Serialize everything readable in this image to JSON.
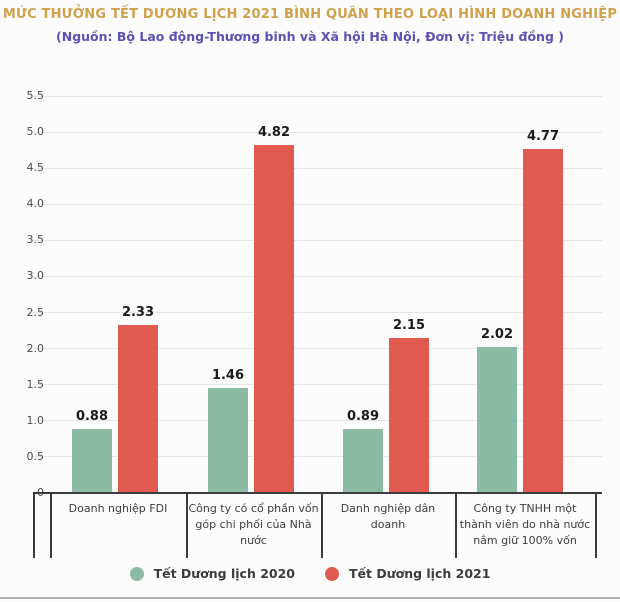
{
  "header": {
    "title": "MỨC THƯỞNG TẾT DƯƠNG LỊCH 2021 BÌNH QUÂN THEO LOẠI HÌNH DOANH NGHIỆP",
    "subtitle": "(Nguồn: Bộ Lao động-Thương binh và Xã hội Hà Nội, Đơn vị: Triệu đồng )"
  },
  "colors": {
    "title_text": "#cfa14b",
    "subtitle_text": "#5c52b4",
    "series_2020": "#8cbba5",
    "series_2021": "#e15a4f",
    "gridline": "#e6e6e6",
    "axis": "#3b3b3b",
    "tick_text": "#4c4c4c",
    "category_text": "#3d3d3d",
    "background": "#fcfcfc"
  },
  "chart_data": {
    "type": "bar",
    "title": "MỨC THƯỞNG TẾT DƯƠNG LỊCH 2021 BÌNH QUÂN THEO LOẠI HÌNH DOANH NGHIỆP",
    "subtitle": "(Nguồn: Bộ Lao động-Thương binh và Xã hội Hà Nội, Đơn vị: Triệu đồng )",
    "unit_label": "Triệu đồng",
    "categories": [
      "Doanh nghiệp FDI",
      "Công ty có cổ phần vốn góp chi phối của Nhà nước",
      "Danh nghiệp dân doanh",
      "Công ty TNHH một thành viên do nhà nước nắm giữ 100% vốn"
    ],
    "series": [
      {
        "name": "Tết Dương lịch 2020",
        "color": "#8cbba5",
        "values": [
          0.88,
          1.46,
          0.89,
          2.02
        ]
      },
      {
        "name": "Tết Dương lịch 2021",
        "color": "#e15a4f",
        "values": [
          2.33,
          4.82,
          2.15,
          4.77
        ]
      }
    ],
    "data_labels": [
      [
        "0.88",
        "1.46",
        "0.89",
        "2.02"
      ],
      [
        "2.33",
        "4.82",
        "2.15",
        "4.77"
      ]
    ],
    "ylim": [
      0,
      5.5
    ],
    "ytick_step": 0.5,
    "yticks": [
      "5.5",
      "5.0",
      "4.5",
      "4.0",
      "3.5",
      "3.0",
      "2.5",
      "2.0",
      "1.5",
      "1.0",
      "0.5",
      "0"
    ],
    "grid": true,
    "legend_position": "bottom"
  }
}
